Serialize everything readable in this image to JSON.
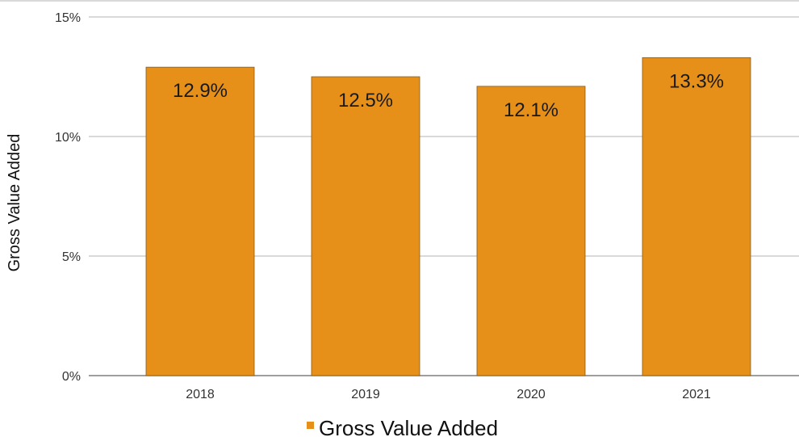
{
  "chart_data": {
    "type": "bar",
    "categories": [
      "2018",
      "2019",
      "2020",
      "2021"
    ],
    "series": [
      {
        "name": "Gross Value Added",
        "values": [
          12.9,
          12.5,
          12.1,
          13.3
        ],
        "labels": [
          "12.9%",
          "12.5%",
          "12.1%",
          "13.3%"
        ],
        "color": "#E69019"
      }
    ],
    "title": "",
    "xlabel": "",
    "ylabel": "Gross Value Added",
    "ylim": [
      0,
      15
    ],
    "yticks": [
      0,
      5,
      10,
      15
    ],
    "ytick_labels": [
      "0%",
      "5%",
      "10%",
      "15%"
    ],
    "grid": true,
    "legend_position": "bottom"
  }
}
